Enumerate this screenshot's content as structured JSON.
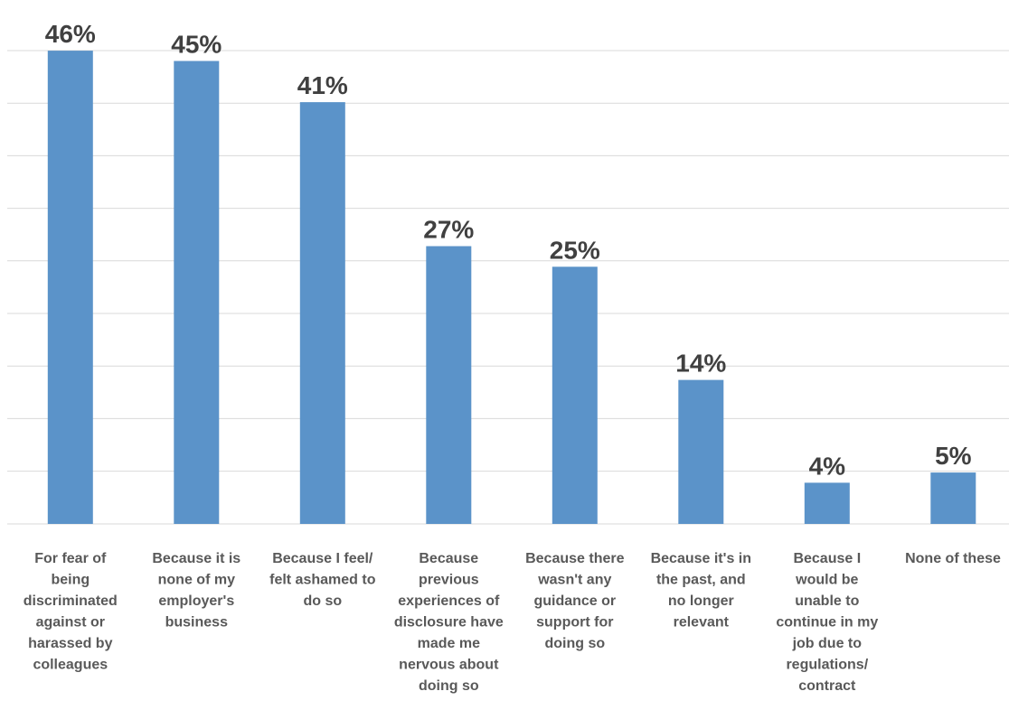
{
  "chart_data": {
    "type": "bar",
    "title": "",
    "xlabel": "",
    "ylabel": "",
    "ylim": [
      0,
      0.45
    ],
    "grid": true,
    "legend": "none",
    "bar_color": "#5b93c9",
    "grid_color": "#d9d9d9",
    "categories": [
      [
        "For fear of",
        "being",
        "discriminated",
        "against or",
        "harassed by",
        "colleagues"
      ],
      [
        "Because it is",
        "none of my",
        "employer's",
        "business"
      ],
      [
        "Because I feel/",
        "felt ashamed to",
        "do so"
      ],
      [
        "Because",
        "previous",
        "experiences of",
        "disclosure have",
        "made me",
        "nervous about",
        "doing so"
      ],
      [
        "Because there",
        "wasn't any",
        "guidance or",
        "support for",
        "doing so"
      ],
      [
        "Because it's in",
        "the past, and",
        "no longer",
        "relevant"
      ],
      [
        "Because I",
        "would be",
        "unable to",
        "continue in my",
        "job due to",
        "regulations/",
        "contract"
      ],
      [
        "None of these"
      ]
    ],
    "values": [
      0.46,
      0.45,
      0.41,
      0.27,
      0.25,
      0.14,
      0.04,
      0.05
    ],
    "labels": [
      "46%",
      "45%",
      "41%",
      "27%",
      "25%",
      "14%",
      "4%",
      "5%"
    ]
  }
}
